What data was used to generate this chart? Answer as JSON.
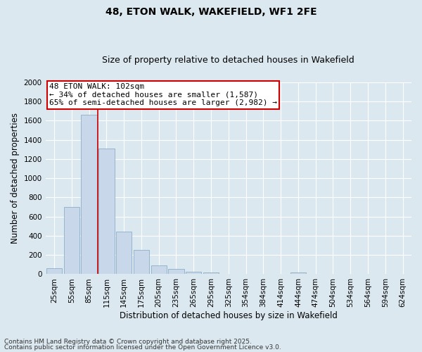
{
  "title": "48, ETON WALK, WAKEFIELD, WF1 2FE",
  "subtitle": "Size of property relative to detached houses in Wakefield",
  "xlabel": "Distribution of detached houses by size in Wakefield",
  "ylabel": "Number of detached properties",
  "footnote1": "Contains HM Land Registry data © Crown copyright and database right 2025.",
  "footnote2": "Contains public sector information licensed under the Open Government Licence v3.0.",
  "annotation_line1": "48 ETON WALK: 102sqm",
  "annotation_line2": "← 34% of detached houses are smaller (1,587)",
  "annotation_line3": "65% of semi-detached houses are larger (2,982) →",
  "categories": [
    "25sqm",
    "55sqm",
    "85sqm",
    "115sqm",
    "145sqm",
    "175sqm",
    "205sqm",
    "235sqm",
    "265sqm",
    "295sqm",
    "325sqm",
    "354sqm",
    "384sqm",
    "414sqm",
    "444sqm",
    "474sqm",
    "504sqm",
    "534sqm",
    "564sqm",
    "594sqm",
    "624sqm"
  ],
  "values": [
    60,
    700,
    1660,
    1310,
    440,
    250,
    95,
    55,
    25,
    20,
    0,
    0,
    0,
    0,
    15,
    0,
    0,
    0,
    0,
    0,
    0
  ],
  "bar_color": "#c8d8ea",
  "bar_edge_color": "#8aaec8",
  "redline_x": 2.5,
  "ylim": [
    0,
    2000
  ],
  "yticks": [
    0,
    200,
    400,
    600,
    800,
    1000,
    1200,
    1400,
    1600,
    1800,
    2000
  ],
  "bg_color": "#dce8f0",
  "plot_bg_color": "#dce8f0",
  "grid_color": "#ffffff",
  "title_fontsize": 10,
  "subtitle_fontsize": 9,
  "axis_label_fontsize": 8.5,
  "tick_fontsize": 7.5,
  "annotation_fontsize": 8,
  "footnote_fontsize": 6.5
}
